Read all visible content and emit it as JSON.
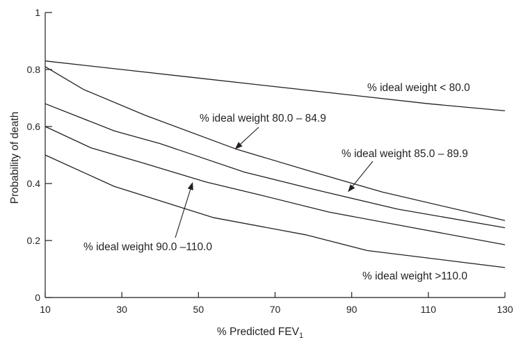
{
  "chart_data": {
    "type": "line",
    "xlabel": "% Predicted FEV",
    "xlabel_sub": "1",
    "ylabel": "Probability of death",
    "xlim": [
      10,
      130
    ],
    "ylim": [
      0,
      1
    ],
    "xticks": [
      10,
      30,
      50,
      70,
      90,
      110,
      130
    ],
    "yticks": [
      0,
      0.2,
      0.4,
      0.6,
      0.8,
      1
    ],
    "ytick_labels": [
      "0",
      "0.2",
      "0.4",
      "0.6",
      "0.8",
      "1"
    ],
    "grid": false,
    "legend": "none",
    "series": [
      {
        "name": "% ideal weight < 80.0",
        "x": [
          10,
          30,
          50,
          70,
          90,
          110,
          130
        ],
        "y": [
          0.83,
          0.8,
          0.77,
          0.74,
          0.71,
          0.68,
          0.655
        ]
      },
      {
        "name": "% ideal weight 80.0 – 84.9",
        "x": [
          10,
          20,
          36,
          60,
          80,
          98,
          130
        ],
        "y": [
          0.81,
          0.73,
          0.64,
          0.52,
          0.44,
          0.37,
          0.27
        ]
      },
      {
        "name": "% ideal weight 85.0 – 89.9",
        "x": [
          10,
          28,
          40,
          62,
          80,
          102,
          130
        ],
        "y": [
          0.68,
          0.585,
          0.54,
          0.44,
          0.38,
          0.31,
          0.245
        ]
      },
      {
        "name": "% ideal weight 90.0 –110.0",
        "x": [
          10,
          22,
          36,
          52,
          66,
          84,
          106,
          130
        ],
        "y": [
          0.6,
          0.525,
          0.47,
          0.405,
          0.36,
          0.3,
          0.245,
          0.185
        ]
      },
      {
        "name": "% ideal weight >110.0",
        "x": [
          10,
          28,
          54,
          78,
          94,
          130
        ],
        "y": [
          0.5,
          0.39,
          0.28,
          0.22,
          0.165,
          0.105
        ]
      }
    ],
    "annotations": [
      {
        "text": "% ideal weight < 80.0",
        "series": 0,
        "arrow": false
      },
      {
        "text": "% ideal weight 80.0 – 84.9",
        "series": 1,
        "arrow": true,
        "arrow_to": [
          59.5,
          0.52
        ]
      },
      {
        "text": "% ideal weight 85.0 – 89.9",
        "series": 2,
        "arrow": true,
        "arrow_to": [
          89,
          0.37
        ]
      },
      {
        "text": "% ideal weight 90.0 –110.0",
        "series": 3,
        "arrow": true,
        "arrow_to": [
          48.5,
          0.405
        ]
      },
      {
        "text": "% ideal weight >110.0",
        "series": 4,
        "arrow": false
      }
    ]
  }
}
